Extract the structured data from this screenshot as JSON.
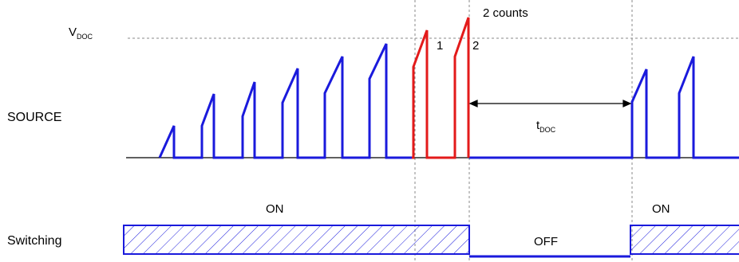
{
  "colors": {
    "normal_pulse": "#1a1adc",
    "fault_pulse": "#e31a1a",
    "guide": "#888888",
    "text": "#000000",
    "hatch": "#1a1adc"
  },
  "labels": {
    "vdoc_main": "V",
    "vdoc_sub": "DOC",
    "source": "SOURCE",
    "switching": "Switching",
    "counts": "2 counts",
    "count_1": "1",
    "count_2": "2",
    "tdoc_main": "t",
    "tdoc_sub": "DOC",
    "on_left": "ON",
    "on_right": "ON",
    "off": "OFF"
  }
}
